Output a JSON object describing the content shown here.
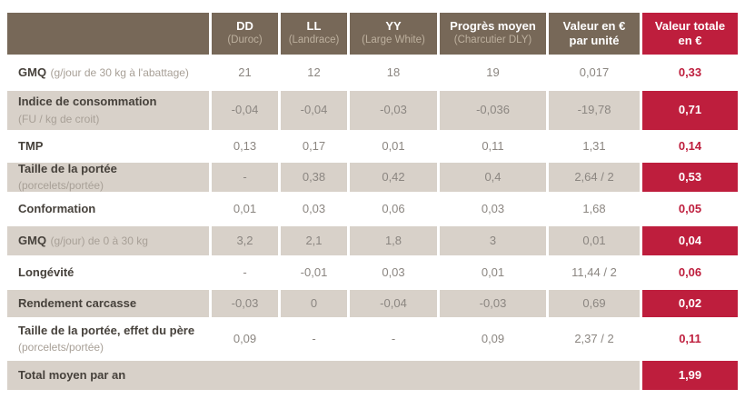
{
  "colors": {
    "header_brown": "#776858",
    "accent_red": "#be1e3d",
    "row_shaded": "#d8d1c9",
    "number_grey": "#8b8681"
  },
  "table": {
    "columns": [
      {
        "label": "DD",
        "sub": "(Duroc)",
        "sub_muted": true
      },
      {
        "label": "LL",
        "sub": "(Landrace)",
        "sub_muted": true
      },
      {
        "label": "YY",
        "sub": "(Large White)",
        "sub_muted": true
      },
      {
        "label": "Progrès moyen",
        "sub": "(Charcutier DLY)",
        "sub_muted": true
      },
      {
        "label": "Valeur en €",
        "sub": "par unité",
        "sub_muted": false
      },
      {
        "label": "Valeur totale",
        "sub": "en €",
        "sub_muted": false
      }
    ],
    "rows": [
      {
        "label": "GMQ",
        "note": "(g/jour de 30 kg à l'abattage)",
        "note_break": false,
        "shaded": false,
        "values": [
          "21",
          "12",
          "18",
          "19",
          "0,017"
        ],
        "total": "0,33"
      },
      {
        "label": "Indice de consommation",
        "note": "(FU / kg de croit)",
        "note_break": true,
        "shaded": true,
        "values": [
          "-0,04",
          "-0,04",
          "-0,03",
          "-0,036",
          "-19,78"
        ],
        "total": "0,71"
      },
      {
        "label": "TMP",
        "note": "",
        "note_break": false,
        "shaded": false,
        "values": [
          "0,13",
          "0,17",
          "0,01",
          "0,11",
          "1,31"
        ],
        "total": "0,14"
      },
      {
        "label": "Taille de la portée",
        "note": "(porcelets/portée)",
        "note_break": false,
        "shaded": true,
        "values": [
          "-",
          "0,38",
          "0,42",
          "0,4",
          "2,64 / 2"
        ],
        "total": "0,53"
      },
      {
        "label": "Conformation",
        "note": "",
        "note_break": false,
        "shaded": false,
        "values": [
          "0,01",
          "0,03",
          "0,06",
          "0,03",
          "1,68"
        ],
        "total": "0,05"
      },
      {
        "label": "GMQ",
        "note": "(g/jour) de 0 à 30 kg",
        "note_break": false,
        "shaded": true,
        "values": [
          "3,2",
          "2,1",
          "1,8",
          "3",
          "0,01"
        ],
        "total": "0,04"
      },
      {
        "label": "Longévité",
        "note": "",
        "note_break": false,
        "shaded": false,
        "values": [
          "-",
          "-0,01",
          "0,03",
          "0,01",
          "11,44 / 2"
        ],
        "total": "0,06"
      },
      {
        "label": "Rendement carcasse",
        "note": "",
        "note_break": false,
        "shaded": true,
        "values": [
          "-0,03",
          "0",
          "-0,04",
          "-0,03",
          "0,69"
        ],
        "total": "0,02"
      },
      {
        "label": "Taille de la portée, effet du père",
        "note": "(porcelets/portée)",
        "note_break": true,
        "shaded": false,
        "values": [
          "0,09",
          "-",
          "-",
          "0,09",
          "2,37 / 2"
        ],
        "total": "0,11"
      }
    ],
    "total_row": {
      "label": "Total moyen par an",
      "total": "1,99"
    }
  }
}
